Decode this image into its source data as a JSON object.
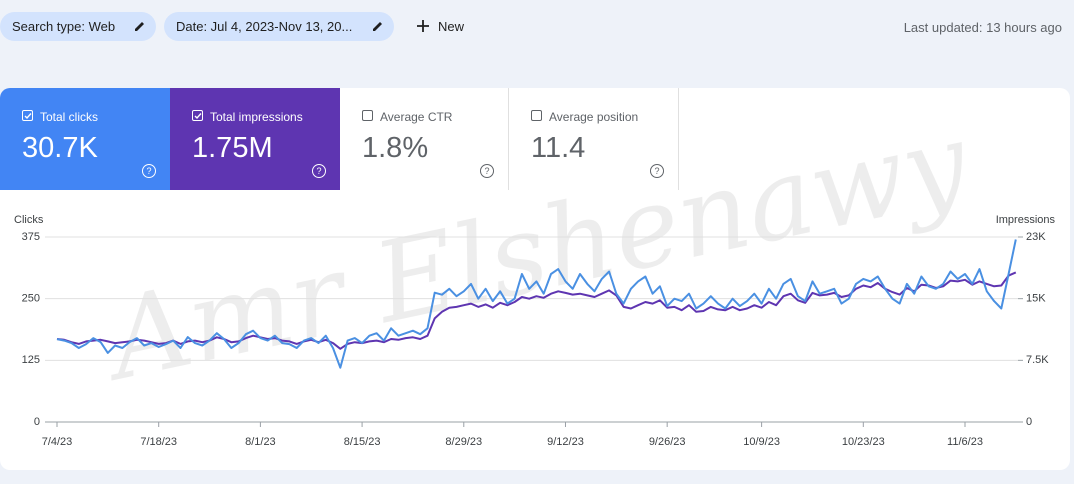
{
  "toolbar": {
    "chips": [
      "Search type: Web",
      "Date: Jul 4, 2023-Nov 13, 20..."
    ],
    "new_button": "New",
    "last_updated": "Last updated: 13 hours ago"
  },
  "metrics": [
    {
      "label": "Total clicks",
      "value": "30.7K",
      "checked": true,
      "color": "#4285f4"
    },
    {
      "label": "Total impressions",
      "value": "1.75M",
      "checked": true,
      "color": "#5e35b1"
    },
    {
      "label": "Average CTR",
      "value": "1.8%",
      "checked": false
    },
    {
      "label": "Average position",
      "value": "11.4",
      "checked": false
    }
  ],
  "watermark": "Amr Elshenawy",
  "chart_data": {
    "type": "line",
    "categories": [
      "7/4/23",
      null,
      null,
      null,
      null,
      null,
      null,
      null,
      null,
      null,
      null,
      null,
      null,
      null,
      "7/18/23",
      null,
      null,
      null,
      null,
      null,
      null,
      null,
      null,
      null,
      null,
      null,
      null,
      null,
      "8/1/23",
      null,
      null,
      null,
      null,
      null,
      null,
      null,
      null,
      null,
      null,
      null,
      null,
      null,
      "8/15/23",
      null,
      null,
      null,
      null,
      null,
      null,
      null,
      null,
      null,
      null,
      null,
      null,
      null,
      "8/29/23",
      null,
      null,
      null,
      null,
      null,
      null,
      null,
      null,
      null,
      null,
      null,
      null,
      null,
      "9/12/23",
      null,
      null,
      null,
      null,
      null,
      null,
      null,
      null,
      null,
      null,
      null,
      null,
      null,
      "9/26/23",
      null,
      null,
      null,
      null,
      null,
      null,
      null,
      null,
      null,
      null,
      null,
      null,
      "10/9/23",
      null,
      null,
      null,
      null,
      null,
      null,
      null,
      null,
      null,
      null,
      null,
      null,
      null,
      "10/23/23",
      null,
      null,
      null,
      null,
      null,
      null,
      null,
      null,
      null,
      null,
      null,
      null,
      null,
      "11/6/23",
      null,
      null,
      null,
      null,
      null,
      null,
      null
    ],
    "series": [
      {
        "name": "Clicks",
        "color": "#4a90e2",
        "values": [
          168,
          165,
          160,
          150,
          158,
          170,
          162,
          140,
          155,
          150,
          162,
          170,
          155,
          160,
          152,
          158,
          165,
          150,
          172,
          160,
          155,
          165,
          180,
          168,
          150,
          160,
          178,
          185,
          170,
          165,
          175,
          160,
          158,
          150,
          165,
          170,
          160,
          175,
          150,
          110,
          165,
          170,
          160,
          175,
          180,
          165,
          190,
          175,
          180,
          185,
          178,
          190,
          262,
          258,
          270,
          255,
          265,
          280,
          250,
          270,
          245,
          265,
          240,
          250,
          300,
          270,
          285,
          260,
          300,
          310,
          285,
          270,
          300,
          280,
          265,
          290,
          305,
          260,
          240,
          270,
          285,
          295,
          260,
          275,
          235,
          250,
          245,
          260,
          230,
          240,
          255,
          240,
          230,
          250,
          235,
          245,
          260,
          240,
          270,
          250,
          280,
          290,
          255,
          245,
          285,
          260,
          265,
          270,
          240,
          250,
          280,
          290,
          285,
          295,
          270,
          250,
          240,
          280,
          260,
          295,
          275,
          270,
          280,
          305,
          290,
          300,
          280,
          310,
          265,
          245,
          230,
          300,
          370
        ]
      },
      {
        "name": "Impressions",
        "color": "#5e35b1",
        "axis": "y2",
        "values": [
          10100,
          10000,
          9700,
          9500,
          9800,
          9900,
          10000,
          9800,
          9600,
          9700,
          9800,
          10000,
          9900,
          9700,
          9500,
          9600,
          9900,
          9500,
          9800,
          9900,
          9700,
          9900,
          10300,
          10100,
          9700,
          9800,
          10200,
          10500,
          10300,
          10100,
          10200,
          9900,
          9800,
          9500,
          9800,
          10000,
          9700,
          10000,
          9600,
          8900,
          9500,
          9700,
          9600,
          9800,
          9900,
          9700,
          10100,
          10000,
          10200,
          10300,
          10100,
          10500,
          12600,
          13400,
          13900,
          14000,
          14200,
          14400,
          14000,
          14300,
          13900,
          14500,
          14200,
          14600,
          15200,
          15000,
          15300,
          15100,
          15600,
          15900,
          15700,
          15500,
          15600,
          15400,
          15200,
          15600,
          16000,
          15400,
          14000,
          13800,
          14200,
          14600,
          14400,
          14800,
          13900,
          14000,
          13600,
          14200,
          13400,
          13500,
          14000,
          13700,
          13600,
          14000,
          13600,
          13800,
          14200,
          13900,
          14600,
          14200,
          15300,
          15600,
          14800,
          14500,
          15700,
          15400,
          15500,
          15700,
          15200,
          15400,
          16200,
          16600,
          16400,
          16900,
          16200,
          15800,
          15500,
          16300,
          15900,
          16700,
          16600,
          16300,
          16500,
          17200,
          17100,
          17300,
          16700,
          17100,
          16800,
          16500,
          16600,
          17800,
          18200
        ]
      }
    ],
    "ylim": [
      0,
      375
    ],
    "yticks": [
      0,
      125,
      250,
      375
    ],
    "y2lim": [
      0,
      22500
    ],
    "y2ticks": [
      0,
      {
        "value": 7500,
        "label": "7.5K"
      },
      {
        "value": 15000,
        "label": "15K"
      },
      {
        "value": 22500,
        "label": "23K"
      }
    ],
    "grid": true
  }
}
